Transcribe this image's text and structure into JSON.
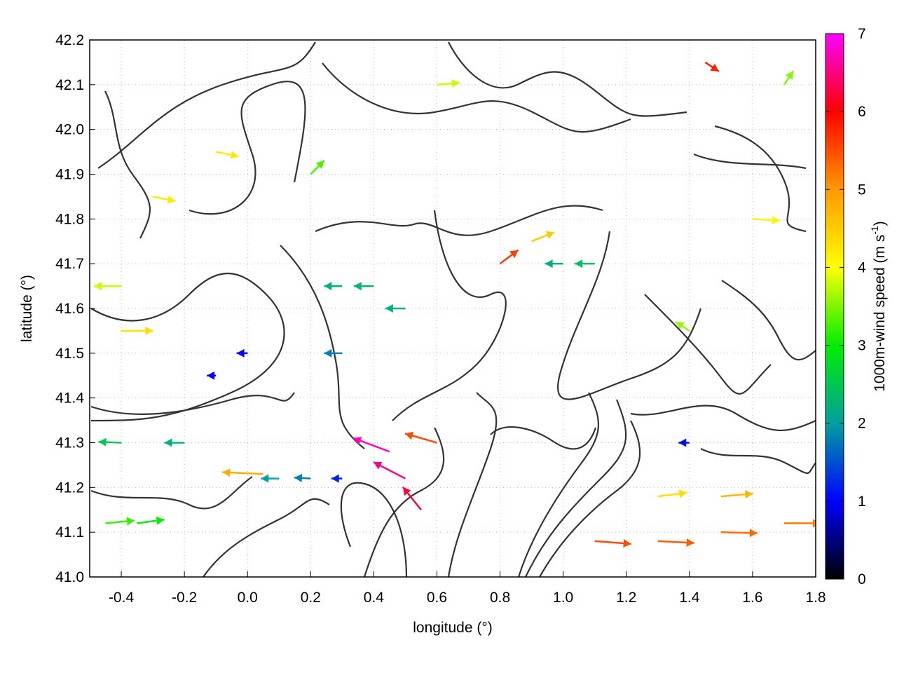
{
  "chart_data": {
    "type": "vector-field",
    "xlabel": "longitude (°)",
    "ylabel": "latitude (°)",
    "xlim": [
      -0.5,
      1.8
    ],
    "ylim": [
      41.0,
      42.2
    ],
    "xticks": [
      -0.4,
      -0.2,
      0.0,
      0.2,
      0.4,
      0.6,
      0.8,
      1.0,
      1.2,
      1.4,
      1.6,
      1.8
    ],
    "xtick_labels": [
      "-0.4",
      "-0.2",
      "0.0",
      "0.2",
      "0.4",
      "0.6",
      "0.8",
      "1.0",
      "1.2",
      "1.4",
      "1.6",
      "1.8"
    ],
    "yticks": [
      41.0,
      41.1,
      41.2,
      41.3,
      41.4,
      41.5,
      41.6,
      41.7,
      41.8,
      41.9,
      42.0,
      42.1,
      42.2
    ],
    "ytick_labels": [
      "41.0",
      "41.1",
      "41.2",
      "41.3",
      "41.4",
      "41.5",
      "41.6",
      "41.7",
      "41.8",
      "41.9",
      "42.0",
      "42.1",
      "42.2"
    ],
    "grid": true,
    "colorbar": {
      "label_main": "1000m-wind speed (m s",
      "label_sup": "-1",
      "label_end": ")",
      "range": [
        0,
        7
      ],
      "ticks": [
        "0",
        "1",
        "2",
        "3",
        "4",
        "5",
        "6",
        "7"
      ],
      "colors": [
        "#000000",
        "#0000ff",
        "#00a0a0",
        "#00ee00",
        "#ffff00",
        "#ff9900",
        "#ff0000",
        "#ff00ff"
      ]
    },
    "vectors": [
      {
        "lon": -0.45,
        "lat": 41.12,
        "u": 3.2,
        "v": 0.3,
        "speed": 3.2
      },
      {
        "lon": -0.35,
        "lat": 41.12,
        "u": 3.0,
        "v": 0.4,
        "speed": 3.0
      },
      {
        "lon": 0.1,
        "lat": 41.22,
        "u": -2.0,
        "v": 0.0,
        "speed": 2.0
      },
      {
        "lon": 0.2,
        "lat": 41.22,
        "u": -1.8,
        "v": 0.1,
        "speed": 1.8
      },
      {
        "lon": 0.3,
        "lat": 41.22,
        "u": -1.2,
        "v": 0.0,
        "speed": 1.2
      },
      {
        "lon": -0.4,
        "lat": 41.3,
        "u": -2.5,
        "v": 0.1,
        "speed": 2.5
      },
      {
        "lon": -0.2,
        "lat": 41.3,
        "u": -2.2,
        "v": 0.0,
        "speed": 2.2
      },
      {
        "lon": 0.05,
        "lat": 41.23,
        "u": -4.5,
        "v": 0.2,
        "speed": 4.8
      },
      {
        "lon": 0.45,
        "lat": 41.28,
        "u": -4.0,
        "v": 1.5,
        "speed": 6.8
      },
      {
        "lon": 0.5,
        "lat": 41.22,
        "u": -3.5,
        "v": 1.8,
        "speed": 6.5
      },
      {
        "lon": 0.55,
        "lat": 41.15,
        "u": -2.0,
        "v": 2.5,
        "speed": 6.2
      },
      {
        "lon": 0.6,
        "lat": 41.3,
        "u": -3.5,
        "v": 1.0,
        "speed": 5.5
      },
      {
        "lon": 1.1,
        "lat": 41.08,
        "u": 4.0,
        "v": -0.3,
        "speed": 5.5
      },
      {
        "lon": 1.3,
        "lat": 41.08,
        "u": 4.0,
        "v": -0.2,
        "speed": 5.4
      },
      {
        "lon": 1.5,
        "lat": 41.1,
        "u": 4.0,
        "v": -0.1,
        "speed": 5.3
      },
      {
        "lon": 1.7,
        "lat": 41.12,
        "u": 4.0,
        "v": 0.0,
        "speed": 5.2
      },
      {
        "lon": 1.5,
        "lat": 41.18,
        "u": 3.5,
        "v": 0.3,
        "speed": 4.7
      },
      {
        "lon": 1.3,
        "lat": 41.18,
        "u": 3.2,
        "v": 0.4,
        "speed": 4.3
      },
      {
        "lon": 0.8,
        "lat": 41.7,
        "u": 2.0,
        "v": 1.5,
        "speed": 5.6
      },
      {
        "lon": 0.9,
        "lat": 41.75,
        "u": 2.5,
        "v": 1.0,
        "speed": 4.5
      },
      {
        "lon": 0.3,
        "lat": 41.65,
        "u": -2.0,
        "v": 0.0,
        "speed": 2.2
      },
      {
        "lon": 0.4,
        "lat": 41.65,
        "u": -2.2,
        "v": 0.0,
        "speed": 2.3
      },
      {
        "lon": 0.5,
        "lat": 41.6,
        "u": -2.2,
        "v": 0.0,
        "speed": 2.2
      },
      {
        "lon": 0.3,
        "lat": 41.5,
        "u": -2.0,
        "v": 0.0,
        "speed": 1.8
      },
      {
        "lon": 0.0,
        "lat": 41.5,
        "u": -1.2,
        "v": 0.0,
        "speed": 1.0
      },
      {
        "lon": -0.1,
        "lat": 41.45,
        "u": -1.0,
        "v": 0.0,
        "speed": 1.0
      },
      {
        "lon": 1.0,
        "lat": 41.7,
        "u": -2.0,
        "v": 0.0,
        "speed": 2.2
      },
      {
        "lon": 1.1,
        "lat": 41.7,
        "u": -2.2,
        "v": 0.0,
        "speed": 2.4
      },
      {
        "lon": 1.4,
        "lat": 41.55,
        "u": -1.5,
        "v": 1.0,
        "speed": 3.6
      },
      {
        "lon": 1.6,
        "lat": 41.8,
        "u": 3.0,
        "v": -0.2,
        "speed": 4.1
      },
      {
        "lon": 1.45,
        "lat": 42.15,
        "u": 1.5,
        "v": -1.0,
        "speed": 5.8
      },
      {
        "lon": 1.7,
        "lat": 42.1,
        "u": 1.0,
        "v": 1.5,
        "speed": 3.5
      },
      {
        "lon": 0.2,
        "lat": 41.9,
        "u": 1.5,
        "v": 1.5,
        "speed": 3.3
      },
      {
        "lon": -0.3,
        "lat": 41.85,
        "u": 2.5,
        "v": -0.5,
        "speed": 4.2
      },
      {
        "lon": -0.1,
        "lat": 41.95,
        "u": 2.5,
        "v": -0.5,
        "speed": 4.2
      },
      {
        "lon": 0.6,
        "lat": 42.1,
        "u": 2.5,
        "v": 0.2,
        "speed": 3.8
      },
      {
        "lon": 1.4,
        "lat": 41.3,
        "u": -1.2,
        "v": 0.0,
        "speed": 1.1
      },
      {
        "lon": -0.4,
        "lat": 41.65,
        "u": -3.0,
        "v": 0.0,
        "speed": 3.8
      },
      {
        "lon": -0.4,
        "lat": 41.55,
        "u": 3.5,
        "v": 0.0,
        "speed": 4.3
      }
    ]
  }
}
